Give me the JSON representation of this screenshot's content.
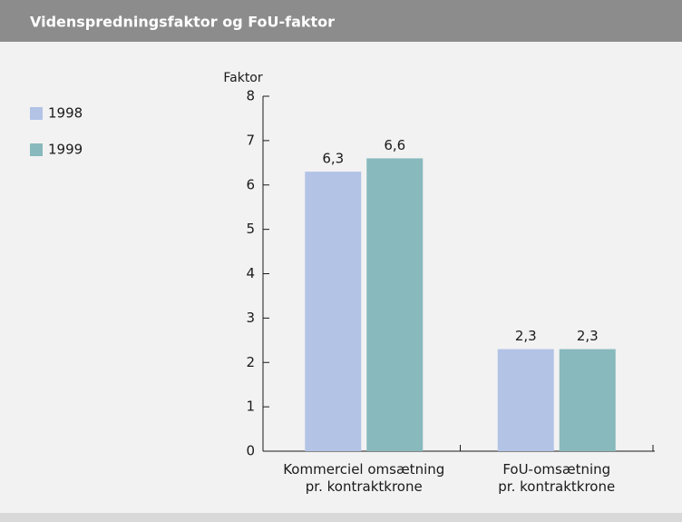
{
  "chart_data": {
    "type": "bar",
    "title": "Videnspredningsfaktor og FoU-faktor",
    "y_label": "Faktor",
    "categories": [
      [
        "Kommerciel omsætning",
        "pr. kontraktkrone"
      ],
      [
        "FoU-omsætning",
        "pr. kontraktkrone"
      ]
    ],
    "series": [
      {
        "name": "1998",
        "color": "#b3c3e6",
        "values": [
          6.3,
          2.3
        ],
        "value_labels": [
          "6,3",
          "2,3"
        ]
      },
      {
        "name": "1999",
        "color": "#88b9bd",
        "values": [
          6.6,
          2.3
        ],
        "value_labels": [
          "6,6",
          "2,3"
        ]
      }
    ],
    "ylim": [
      0,
      8
    ],
    "yticks": [
      0,
      1,
      2,
      3,
      4,
      5,
      6,
      7,
      8
    ],
    "legend": "top-left"
  }
}
